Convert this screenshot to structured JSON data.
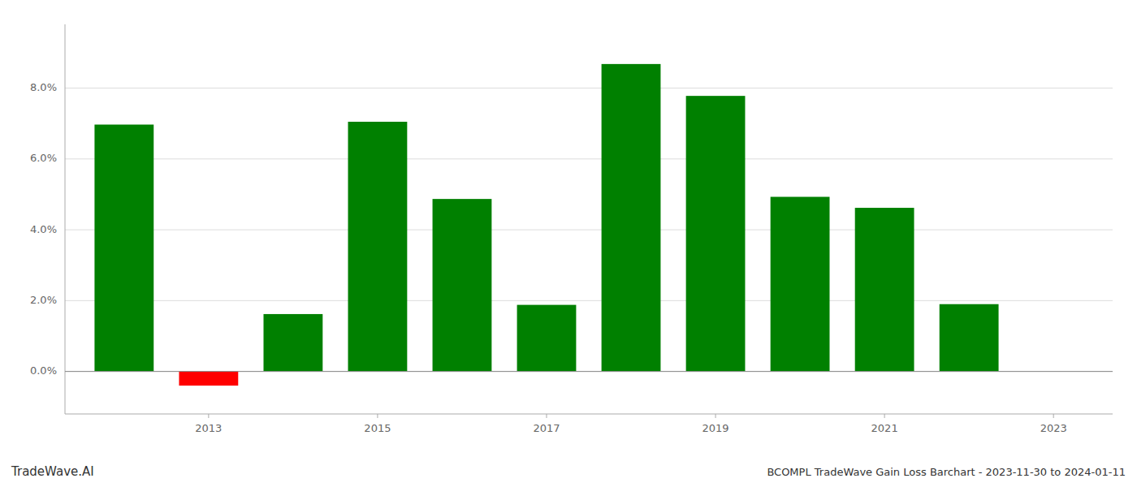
{
  "chart_data": {
    "type": "bar",
    "title": "BCOMPL TradeWave Gain Loss Barchart - 2023-11-30 to 2024-01-11",
    "annotations": [
      "TradeWave.AI"
    ],
    "x": [
      2012,
      2013,
      2014,
      2015,
      2016,
      2017,
      2018,
      2019,
      2020,
      2021,
      2022
    ],
    "values": [
      0.0697,
      -0.004,
      0.0162,
      0.0705,
      0.0487,
      0.0188,
      0.0868,
      0.0778,
      0.0493,
      0.0462,
      0.019
    ],
    "colors": [
      "#008000",
      "#ff0000",
      "#008000",
      "#008000",
      "#008000",
      "#008000",
      "#008000",
      "#008000",
      "#008000",
      "#008000",
      "#008000"
    ],
    "xlim": [
      2011.3,
      2023.7
    ],
    "xticks": [
      2013,
      2015,
      2017,
      2019,
      2021,
      2023
    ],
    "ylim": [
      -0.012,
      0.098
    ],
    "yticks": [
      {
        "value": 0,
        "label": "0.0%"
      },
      {
        "value": 0.02,
        "label": "2.0%"
      },
      {
        "value": 0.04,
        "label": "4.0%"
      },
      {
        "value": 0.06,
        "label": "6.0%"
      },
      {
        "value": 0.08,
        "label": "8.0%"
      }
    ],
    "grid": true
  }
}
